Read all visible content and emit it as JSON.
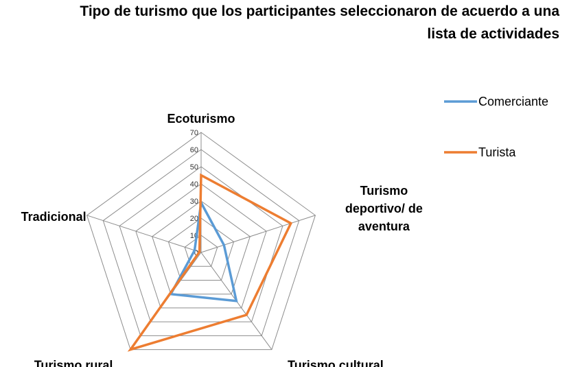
{
  "chart_data": {
    "type": "radar",
    "title": "Tipo de turismo que los participantes seleccionaron de acuerdo a una lista de actividades",
    "title_lines": [
      "Tipo de turismo que los participantes seleccionaron de acuerdo a una",
      "lista de actividades"
    ],
    "categories": [
      "Ecoturismo",
      "Turismo deportivo/ de aventura",
      "Turismo cultural",
      "Turismo rural",
      "Tradicional"
    ],
    "category_lines": [
      [
        "Ecoturismo"
      ],
      [
        "Turismo",
        "deportivo/ de",
        "aventura"
      ],
      [
        "Turismo cultural"
      ],
      [
        "Turismo rural"
      ],
      [
        "Tradicional"
      ]
    ],
    "series": [
      {
        "name": "Comerciante",
        "color": "#5B9BD5",
        "values": [
          29,
          14,
          35,
          30,
          4
        ]
      },
      {
        "name": "Turista",
        "color": "#ED7D31",
        "values": [
          45,
          55,
          45,
          70,
          1
        ]
      }
    ],
    "rmax": 70,
    "ticks": [
      0,
      10,
      20,
      30,
      40,
      50,
      60,
      70
    ],
    "grid": true,
    "legend_position": "right"
  }
}
